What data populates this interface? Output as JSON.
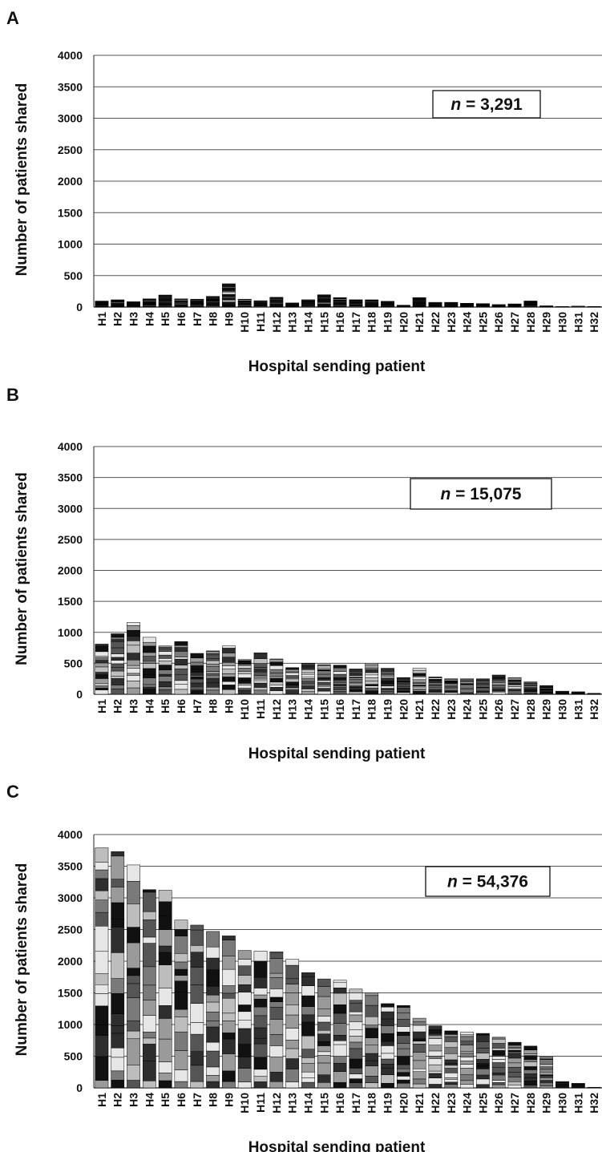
{
  "chart_data": [
    {
      "panel": "A",
      "type": "bar",
      "stacked": true,
      "categories": [
        "H1",
        "H2",
        "H3",
        "H4",
        "H5",
        "H6",
        "H7",
        "H8",
        "H9",
        "H10",
        "H11",
        "H12",
        "H13",
        "H14",
        "H15",
        "H16",
        "H17",
        "H18",
        "H19",
        "H20",
        "H21",
        "H22",
        "H23",
        "H24",
        "H25",
        "H26",
        "H27",
        "H28",
        "H29",
        "H30",
        "H31",
        "H32"
      ],
      "values": [
        95,
        115,
        85,
        130,
        190,
        130,
        125,
        170,
        370,
        125,
        100,
        155,
        65,
        115,
        195,
        150,
        115,
        115,
        90,
        30,
        150,
        75,
        75,
        60,
        55,
        40,
        50,
        95,
        20,
        10,
        15,
        10
      ],
      "annotation_prefix": "n",
      "annotation_value": " = 3,291",
      "xlabel": "Hospital sending patient",
      "ylabel": "Number of patients shared",
      "ylim": [
        0,
        4000
      ],
      "yticks": [
        0,
        500,
        1000,
        1500,
        2000,
        2500,
        3000,
        3500,
        4000
      ],
      "grid": true,
      "palette": "dark"
    },
    {
      "panel": "B",
      "type": "bar",
      "stacked": true,
      "categories": [
        "H1",
        "H2",
        "H3",
        "H4",
        "H5",
        "H6",
        "H7",
        "H8",
        "H9",
        "H10",
        "H11",
        "H12",
        "H13",
        "H14",
        "H15",
        "H16",
        "H17",
        "H18",
        "H19",
        "H20",
        "H21",
        "H22",
        "H23",
        "H24",
        "H25",
        "H26",
        "H27",
        "H28",
        "H29",
        "H30",
        "H31",
        "H32"
      ],
      "values": [
        810,
        980,
        1160,
        920,
        780,
        850,
        660,
        700,
        780,
        560,
        670,
        570,
        430,
        500,
        480,
        470,
        410,
        500,
        420,
        270,
        420,
        280,
        250,
        250,
        250,
        310,
        270,
        200,
        140,
        50,
        40,
        15
      ],
      "annotation_prefix": "n",
      "annotation_value": " = 15,075",
      "xlabel": "Hospital sending patient",
      "ylabel": "Number of patients shared",
      "ylim": [
        0,
        4000
      ],
      "yticks": [
        0,
        500,
        1000,
        1500,
        2000,
        2500,
        3000,
        3500,
        4000
      ],
      "grid": true,
      "palette": "mixed"
    },
    {
      "panel": "C",
      "type": "bar",
      "stacked": true,
      "categories": [
        "H1",
        "H2",
        "H3",
        "H4",
        "H5",
        "H6",
        "H7",
        "H8",
        "H9",
        "H10",
        "H11",
        "H12",
        "H13",
        "H14",
        "H15",
        "H16",
        "H17",
        "H18",
        "H19",
        "H20",
        "H21",
        "H22",
        "H23",
        "H24",
        "H25",
        "H26",
        "H27",
        "H28",
        "H29",
        "H30",
        "H31",
        "H32"
      ],
      "values": [
        3790,
        3730,
        3520,
        3130,
        3120,
        2650,
        2570,
        2470,
        2400,
        2170,
        2160,
        2150,
        2030,
        1820,
        1720,
        1700,
        1560,
        1500,
        1330,
        1300,
        1100,
        980,
        900,
        880,
        860,
        800,
        720,
        660,
        490,
        100,
        70,
        10
      ],
      "annotation_prefix": "n",
      "annotation_value": " = 54,376",
      "xlabel": "Hospital sending patient",
      "ylabel": "Number of patients shared",
      "ylim": [
        0,
        4000
      ],
      "yticks": [
        0,
        500,
        1000,
        1500,
        2000,
        2500,
        3000,
        3500,
        4000
      ],
      "grid": true,
      "palette": "mixed"
    }
  ],
  "colors": {
    "grid": "#555555",
    "axis": "#222222",
    "segment_shades": [
      "#111111",
      "#2e2e2e",
      "#555555",
      "#7a7a7a",
      "#9a9a9a",
      "#bdbdbd",
      "#e6e6e6"
    ]
  }
}
